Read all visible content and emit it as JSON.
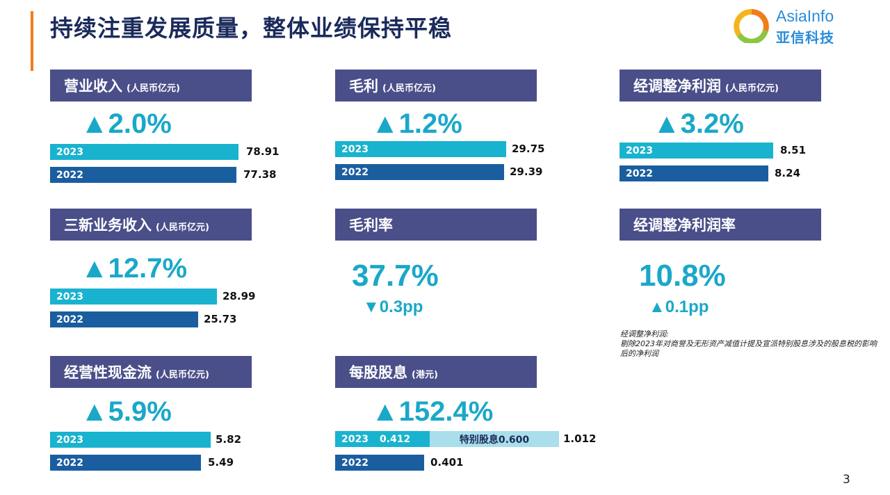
{
  "slide": {
    "title": "持续注重发展质量，整体业绩保持平稳",
    "page_number": "3",
    "logo": {
      "en": "AsiaInfo",
      "cn": "亚信科技"
    },
    "colors": {
      "header": "#4a4f8a",
      "bar_2023": "#19b3cf",
      "bar_2022": "#1a5ea0",
      "special": "#a9deea",
      "accent": "#f07d1a",
      "highlight": "#1aa8c8"
    }
  },
  "revenue": {
    "title": "营业收入",
    "unit": "(人民币亿元)",
    "change": "▲2.0%",
    "y2023": {
      "label": "2023",
      "value": "78.91"
    },
    "y2022": {
      "label": "2022",
      "value": "77.38"
    }
  },
  "gross_profit": {
    "title": "毛利",
    "unit": "(人民币亿元)",
    "change": "▲1.2%",
    "y2023": {
      "label": "2023",
      "value": "29.75"
    },
    "y2022": {
      "label": "2022",
      "value": "29.39"
    }
  },
  "adj_net_profit": {
    "title": "经调整净利润",
    "unit": "(人民币亿元)",
    "change": "▲3.2%",
    "y2023": {
      "label": "2023",
      "value": "8.51"
    },
    "y2022": {
      "label": "2022",
      "value": "8.24"
    }
  },
  "new_business": {
    "title": "三新业务收入",
    "unit": "(人民币亿元)",
    "change": "▲12.7%",
    "y2023": {
      "label": "2023",
      "value": "28.99"
    },
    "y2022": {
      "label": "2022",
      "value": "25.73"
    }
  },
  "gross_margin": {
    "title": "毛利率",
    "value": "37.7%",
    "change": "▼0.3pp"
  },
  "adj_net_margin": {
    "title": "经调整净利润率",
    "value": "10.8%",
    "change": "▲0.1pp",
    "note_title": "经调整净利润:",
    "note_body": "剔除2023年对商誉及无形资产减值计提及宣派特别股息涉及的股息税的影响后的净利润"
  },
  "operating_cash_flow": {
    "title": "经营性现金流",
    "unit": "(人民币亿元)",
    "change": "▲5.9%",
    "y2023": {
      "label": "2023",
      "value": "5.82"
    },
    "y2022": {
      "label": "2022",
      "value": "5.49"
    }
  },
  "dividend": {
    "title": "每股股息",
    "unit": "(港元)",
    "change": "▲152.4%",
    "y2023": {
      "label": "2023",
      "regular": "0.412",
      "special": "特别股息0.600",
      "value": "1.012"
    },
    "y2022": {
      "label": "2022",
      "value": "0.401"
    }
  }
}
